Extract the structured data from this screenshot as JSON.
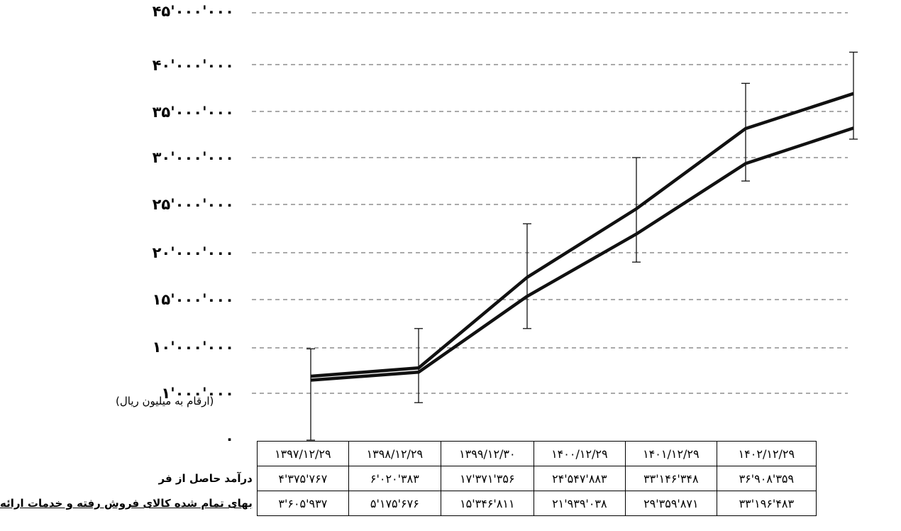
{
  "chart_data": {
    "type": "line",
    "y_tick_labels": [
      "۰",
      "۱'۰۰۰'۰۰۰",
      "۱۰'۰۰۰'۰۰۰",
      "۱۵'۰۰۰'۰۰۰",
      "۲۰'۰۰۰'۰۰۰",
      "۲۵'۰۰۰'۰۰۰",
      "۳۰'۰۰۰'۰۰۰",
      "۳۵'۰۰۰'۰۰۰",
      "۴۰'۰۰۰'۰۰۰",
      "۴۵'۰۰۰'۰۰۰"
    ],
    "y_tick_values": [
      0,
      1000000,
      10000000,
      15000000,
      20000000,
      25000000,
      30000000,
      35000000,
      40000000,
      45000000
    ],
    "unit_note": "(ارقام به میلیون ریال)",
    "grid": "dashed horizontal",
    "categories": [
      "۱۳۹۷/۱۲/۲۹",
      "۱۳۹۸/۱۲/۲۹",
      "۱۳۹۹/۱۲/۳۰",
      "۱۴۰۰/۱۲/۲۹",
      "۱۴۰۱/۱۲/۲۹",
      "۱۴۰۲/۱۲/۲۹"
    ],
    "series": [
      {
        "name": "درآمد حاصل از فر",
        "values": [
          4375767,
          6020383,
          17371356,
          24547883,
          33146348,
          36908359
        ],
        "value_labels": [
          "۴'۳۷۵'۷۶۷",
          "۶'۰۲۰'۳۸۳",
          "۱۷'۳۷۱'۳۵۶",
          "۲۴'۵۴۷'۸۸۳",
          "۳۳'۱۴۶'۳۴۸",
          "۳۶'۹۰۸'۳۵۹"
        ]
      },
      {
        "name": "بهای تمام شده کالای فروش رفته و خدمات ارائه",
        "values": [
          3605937,
          5175676,
          15346811,
          21939038,
          29359871,
          33196483
        ],
        "value_labels": [
          "۳'۶۰۵'۹۳۷",
          "۵'۱۷۵'۶۷۶",
          "۱۵'۳۴۶'۸۱۱",
          "۲۱'۹۳۹'۰۳۸",
          "۲۹'۳۵۹'۸۷۱",
          "۳۳'۱۹۶'۴۸۳"
        ]
      }
    ],
    "error_bar_ranges": [
      [
        0,
        9800000
      ],
      [
        800000,
        12000000
      ],
      [
        12000000,
        23000000
      ],
      [
        19000000,
        30000000
      ],
      [
        27500000,
        38000000
      ],
      [
        32000000,
        41200000
      ]
    ],
    "colors": {
      "line": "#111111",
      "grid": "#555555"
    }
  }
}
